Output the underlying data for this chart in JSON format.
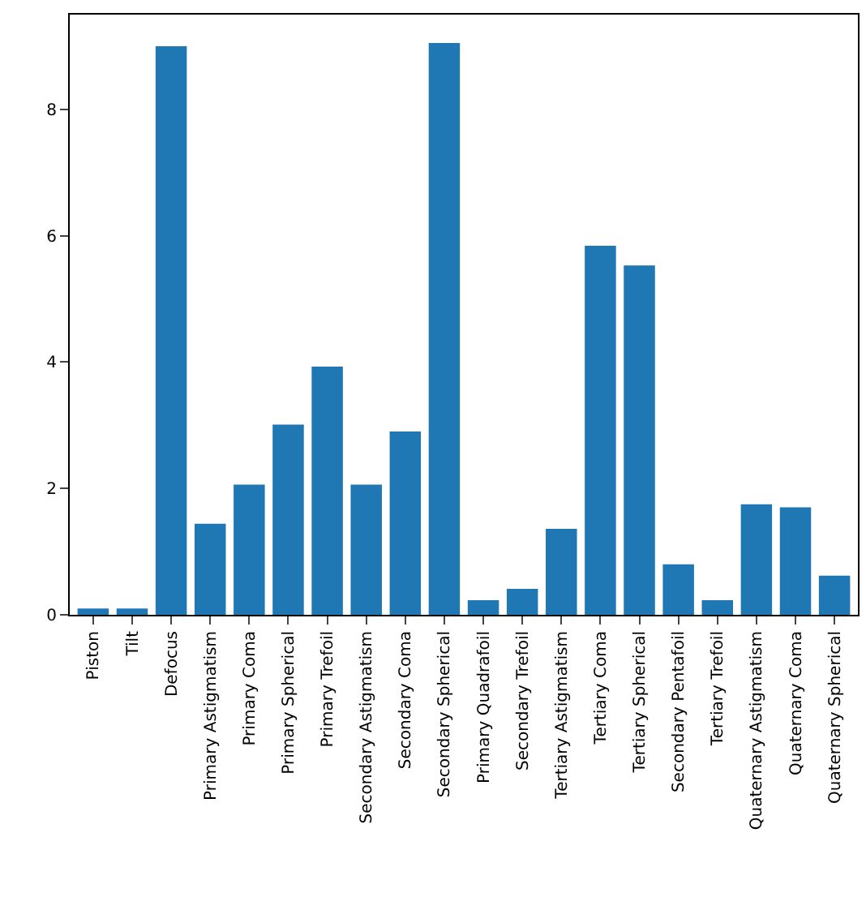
{
  "chart_data": {
    "type": "bar",
    "categories": [
      "Piston",
      "Tilt",
      "Defocus",
      "Primary Astigmatism",
      "Primary Coma",
      "Primary Spherical",
      "Primary Trefoil",
      "Secondary Astigmatism",
      "Secondary Coma",
      "Secondary Spherical",
      "Primary Quadrafoil",
      "Secondary Trefoil",
      "Tertiary Astigmatism",
      "Tertiary Coma",
      "Tertiary Spherical",
      "Secondary Pentafoil",
      "Tertiary Trefoil",
      "Quaternary Astigmatism",
      "Quaternary Coma",
      "Quaternary Spherical"
    ],
    "values": [
      0.1,
      0.1,
      9.0,
      1.44,
      2.06,
      3.01,
      3.93,
      2.06,
      2.9,
      9.05,
      0.23,
      0.41,
      1.36,
      5.84,
      5.53,
      0.8,
      0.23,
      1.75,
      1.7,
      0.62
    ],
    "color": "#1f77b4",
    "ylim": [
      0,
      9.5
    ],
    "yticks": [
      0,
      2,
      4,
      6,
      8
    ]
  }
}
